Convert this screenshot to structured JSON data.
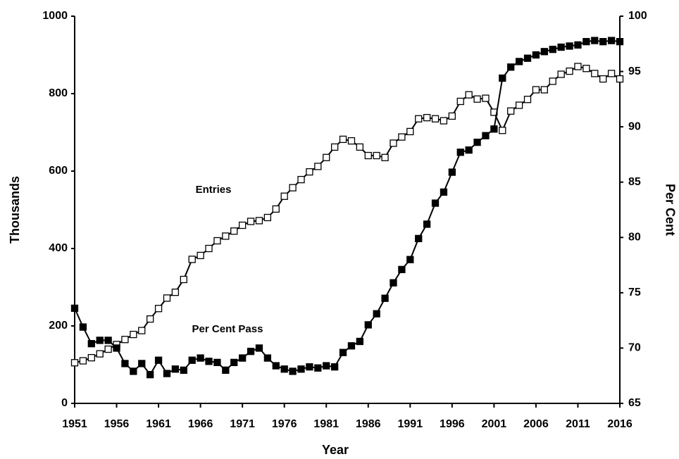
{
  "chart_data": {
    "type": "line",
    "x_label": "Year",
    "y_label": "Thousands",
    "y2_label": "Per Cent",
    "annotations": [
      "Entries",
      "Per Cent Pass"
    ],
    "x": [
      1951,
      1952,
      1953,
      1954,
      1955,
      1956,
      1957,
      1958,
      1959,
      1960,
      1961,
      1962,
      1963,
      1964,
      1965,
      1966,
      1967,
      1968,
      1969,
      1970,
      1971,
      1972,
      1973,
      1974,
      1975,
      1976,
      1977,
      1978,
      1979,
      1980,
      1981,
      1982,
      1983,
      1984,
      1985,
      1986,
      1987,
      1988,
      1989,
      1990,
      1991,
      1992,
      1993,
      1994,
      1995,
      1996,
      1997,
      1998,
      1999,
      2000,
      2001,
      2002,
      2003,
      2004,
      2005,
      2006,
      2007,
      2008,
      2009,
      2010,
      2011,
      2012,
      2013,
      2014,
      2015,
      2016
    ],
    "xlim": [
      1951,
      2016
    ],
    "xticks": [
      1951,
      1956,
      1961,
      1966,
      1971,
      1976,
      1981,
      1986,
      1991,
      1996,
      2001,
      2006,
      2011,
      2016
    ],
    "ylim": [
      0,
      1000
    ],
    "yticks": [
      0,
      200,
      400,
      600,
      800,
      1000
    ],
    "y2lim": [
      65,
      100
    ],
    "y2ticks": [
      65,
      70,
      75,
      80,
      85,
      90,
      95,
      100
    ],
    "series": [
      {
        "name": "Entries",
        "color": "#000000",
        "marker": "open-square",
        "values": [
          105,
          110,
          118,
          128,
          140,
          152,
          165,
          178,
          188,
          218,
          245,
          272,
          287,
          320,
          372,
          382,
          400,
          420,
          432,
          445,
          460,
          470,
          472,
          480,
          502,
          535,
          557,
          578,
          598,
          612,
          635,
          662,
          682,
          678,
          662,
          640,
          640,
          635,
          672,
          688,
          702,
          735,
          738,
          735,
          730,
          742,
          780,
          797,
          786,
          788,
          752,
          705,
          755,
          770,
          785,
          810,
          810,
          832,
          850,
          858,
          870,
          865,
          852,
          838,
          852,
          838
        ]
      },
      {
        "name": "Per Cent Pass",
        "color": "#000000",
        "marker": "filled-square",
        "axis": "y2",
        "values": [
          73.6,
          71.9,
          70.4,
          70.7,
          70.7,
          70.0,
          68.6,
          67.9,
          68.6,
          67.6,
          68.9,
          67.7,
          68.1,
          68.0,
          68.9,
          69.1,
          68.8,
          68.7,
          68.0,
          68.7,
          69.1,
          69.7,
          70.0,
          69.1,
          68.4,
          68.1,
          67.9,
          68.1,
          68.3,
          68.2,
          68.4,
          68.3,
          69.6,
          70.2,
          70.6,
          72.1,
          73.1,
          74.5,
          75.9,
          77.1,
          78.0,
          79.9,
          81.2,
          83.1,
          84.1,
          85.9,
          87.7,
          87.9,
          88.6,
          89.2,
          89.8,
          94.4,
          95.4,
          95.9,
          96.2,
          96.5,
          96.8,
          97.0,
          97.2,
          97.3,
          97.4,
          97.7,
          97.8,
          97.7,
          97.8,
          97.7
        ]
      }
    ]
  }
}
